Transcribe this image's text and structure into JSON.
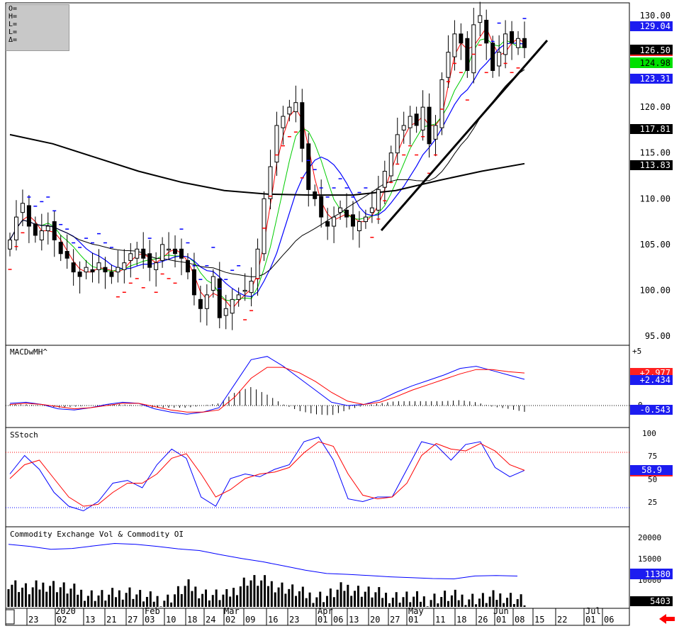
{
  "ohlc_box": {
    "o": "O=",
    "h": "H=",
    "l": "L=",
    "l2": "L=",
    "d": "Δ="
  },
  "colors": {
    "price_bar": "#000000",
    "ma_red": "#ff0000",
    "ma_green": "#00cc00",
    "ma_blue": "#0000ff",
    "ma_black": "#000000",
    "psar_blue": "#0000ff",
    "psar_red": "#ff0000",
    "label_blue_bg": "#1c1cf0",
    "label_green_bg": "#00e000",
    "label_red_bg": "#ff2020",
    "label_black_bg": "#000000",
    "nav_arrow": "#ff0000"
  },
  "icons": {
    "nav_arrow": "left-arrow-icon"
  },
  "price_panel": {
    "y_ticks": [
      "130.00",
      "125.00",
      "120.00",
      "115.00",
      "110.00",
      "105.00",
      "100.00",
      "95.00"
    ],
    "labels": {
      "psar": "129.04",
      "last": "126.50",
      "ma_green": "124.98",
      "ma_blue": "123.31",
      "ma_black1": "117.81",
      "ma_black2": "113.83"
    }
  },
  "macd_panel": {
    "title": "MACDwMH^",
    "y_ticks": [
      "+5",
      "0"
    ],
    "labels": {
      "red": "+2.977",
      "blue": "+2.434",
      "hist": "-0.543"
    }
  },
  "stoch_panel": {
    "title": "SStoch",
    "y_ticks": [
      "100",
      "75",
      "50",
      "25"
    ],
    "labels": {
      "value": "58.9"
    }
  },
  "volume_panel": {
    "title": "Commodity Exchange Vol & Commodity OI",
    "y_ticks": [
      "20000",
      "15000",
      "10000"
    ],
    "labels": {
      "oi": "11380",
      "vol": "5403"
    }
  },
  "x_axis": {
    "days": [
      "23",
      "02",
      "13",
      "21",
      "27",
      "03",
      "10",
      "18",
      "24",
      "02",
      "09",
      "16",
      "23",
      "01",
      "06",
      "13",
      "20",
      "27",
      "01",
      "11",
      "18",
      "26",
      "01",
      "08",
      "15",
      "22",
      "01",
      "06"
    ],
    "months": [
      "2020",
      "Feb",
      "Mar",
      "Apr",
      "May",
      "Jun",
      "Jul"
    ]
  },
  "chart_data": [
    {
      "type": "candlestick",
      "title": "",
      "ylim": [
        95,
        130
      ],
      "note_series": [
        "candles",
        "moving averages (red, green, blue, black, black)",
        "parabolic SAR dots",
        "trendline"
      ],
      "approx_closes": [
        105.5,
        108,
        109.5,
        107,
        106,
        106.5,
        107,
        105.5,
        104,
        103.5,
        102,
        101.5,
        102.5,
        102,
        103,
        102,
        101.5,
        102.5,
        103,
        104,
        104.5,
        103.5,
        102.5,
        103,
        105,
        104.5,
        104,
        103.5,
        102,
        99.5,
        98,
        99.5,
        101.5,
        97,
        98,
        99,
        99.5,
        100,
        101,
        104.5,
        110,
        113.5,
        118,
        119,
        120,
        120.5,
        115.5,
        111,
        110,
        108,
        107,
        108,
        109,
        108,
        107,
        107.5,
        108,
        109,
        111,
        113,
        115,
        117,
        118,
        119,
        118,
        120,
        116,
        118,
        123,
        126,
        128,
        127,
        124,
        129,
        130,
        127,
        124,
        126,
        128,
        127,
        127.5,
        126.5
      ],
      "moving_averages_last": {
        "green": 124.98,
        "blue": 123.31,
        "black_1": 117.81,
        "black_2": 113.83
      },
      "last": 126.5,
      "psar_last": 129.04
    },
    {
      "type": "line",
      "title": "MACDwMH^",
      "ylim": [
        -2.5,
        5
      ],
      "series": [
        {
          "name": "MACD",
          "values": [
            0.2,
            0.3,
            0.1,
            -0.3,
            -0.4,
            -0.2,
            0.1,
            0.3,
            0.2,
            -0.3,
            -0.6,
            -0.8,
            -0.6,
            -0.2,
            2.0,
            4.2,
            4.5,
            3.6,
            2.5,
            1.4,
            0.3,
            0.0,
            0.1,
            0.5,
            1.2,
            1.8,
            2.3,
            2.8,
            3.4,
            3.6,
            3.2,
            2.8,
            2.4
          ]
        },
        {
          "name": "Signal",
          "values": [
            0.1,
            0.2,
            0.1,
            -0.1,
            -0.3,
            -0.2,
            0.0,
            0.2,
            0.2,
            -0.1,
            -0.4,
            -0.6,
            -0.6,
            -0.4,
            0.8,
            2.5,
            3.5,
            3.5,
            3.0,
            2.2,
            1.2,
            0.4,
            0.1,
            0.3,
            0.8,
            1.4,
            1.9,
            2.4,
            2.9,
            3.3,
            3.3,
            3.1,
            2.98
          ]
        }
      ],
      "last": {
        "signal": 2.977,
        "macd": 2.434,
        "hist": -0.543
      }
    },
    {
      "type": "line",
      "title": "SStoch",
      "ylim": [
        0,
        100
      ],
      "series": [
        {
          "name": "%K",
          "values": [
            55,
            75,
            60,
            35,
            20,
            15,
            25,
            45,
            48,
            40,
            65,
            82,
            72,
            30,
            20,
            50,
            55,
            52,
            60,
            65,
            90,
            95,
            70,
            28,
            25,
            30,
            30,
            60,
            90,
            86,
            70,
            87,
            90,
            62,
            52,
            58.9
          ]
        },
        {
          "name": "%D",
          "values": [
            50,
            65,
            70,
            50,
            30,
            20,
            22,
            35,
            45,
            45,
            55,
            72,
            77,
            55,
            30,
            38,
            50,
            55,
            57,
            62,
            78,
            90,
            85,
            55,
            32,
            28,
            30,
            45,
            75,
            88,
            82,
            80,
            88,
            80,
            65,
            58.9
          ]
        }
      ],
      "reference_lines": [
        80,
        20
      ]
    },
    {
      "type": "bar",
      "title": "Commodity Exchange Vol & Commodity OI",
      "ylim": [
        4000,
        22000
      ],
      "series": [
        {
          "name": "Vol",
          "values": [
            10000,
            8000,
            9500,
            8200,
            7000,
            6500,
            7800,
            6000,
            5800,
            9000,
            7000,
            6500,
            10500,
            9800,
            8500,
            6800,
            6500,
            8700,
            7600,
            6700,
            6300,
            5800,
            6500,
            6200,
            5900,
            6700,
            5403
          ]
        },
        {
          "name": "OI",
          "values": [
            19000,
            18500,
            17800,
            18000,
            18600,
            19200,
            19000,
            18500,
            17900,
            17500,
            16500,
            15600,
            14800,
            13800,
            12800,
            12000,
            11800,
            11500,
            11200,
            11000,
            10800,
            10700,
            11400,
            11500,
            11380
          ]
        }
      ],
      "last": {
        "oi": 11380,
        "vol": 5403
      }
    }
  ]
}
